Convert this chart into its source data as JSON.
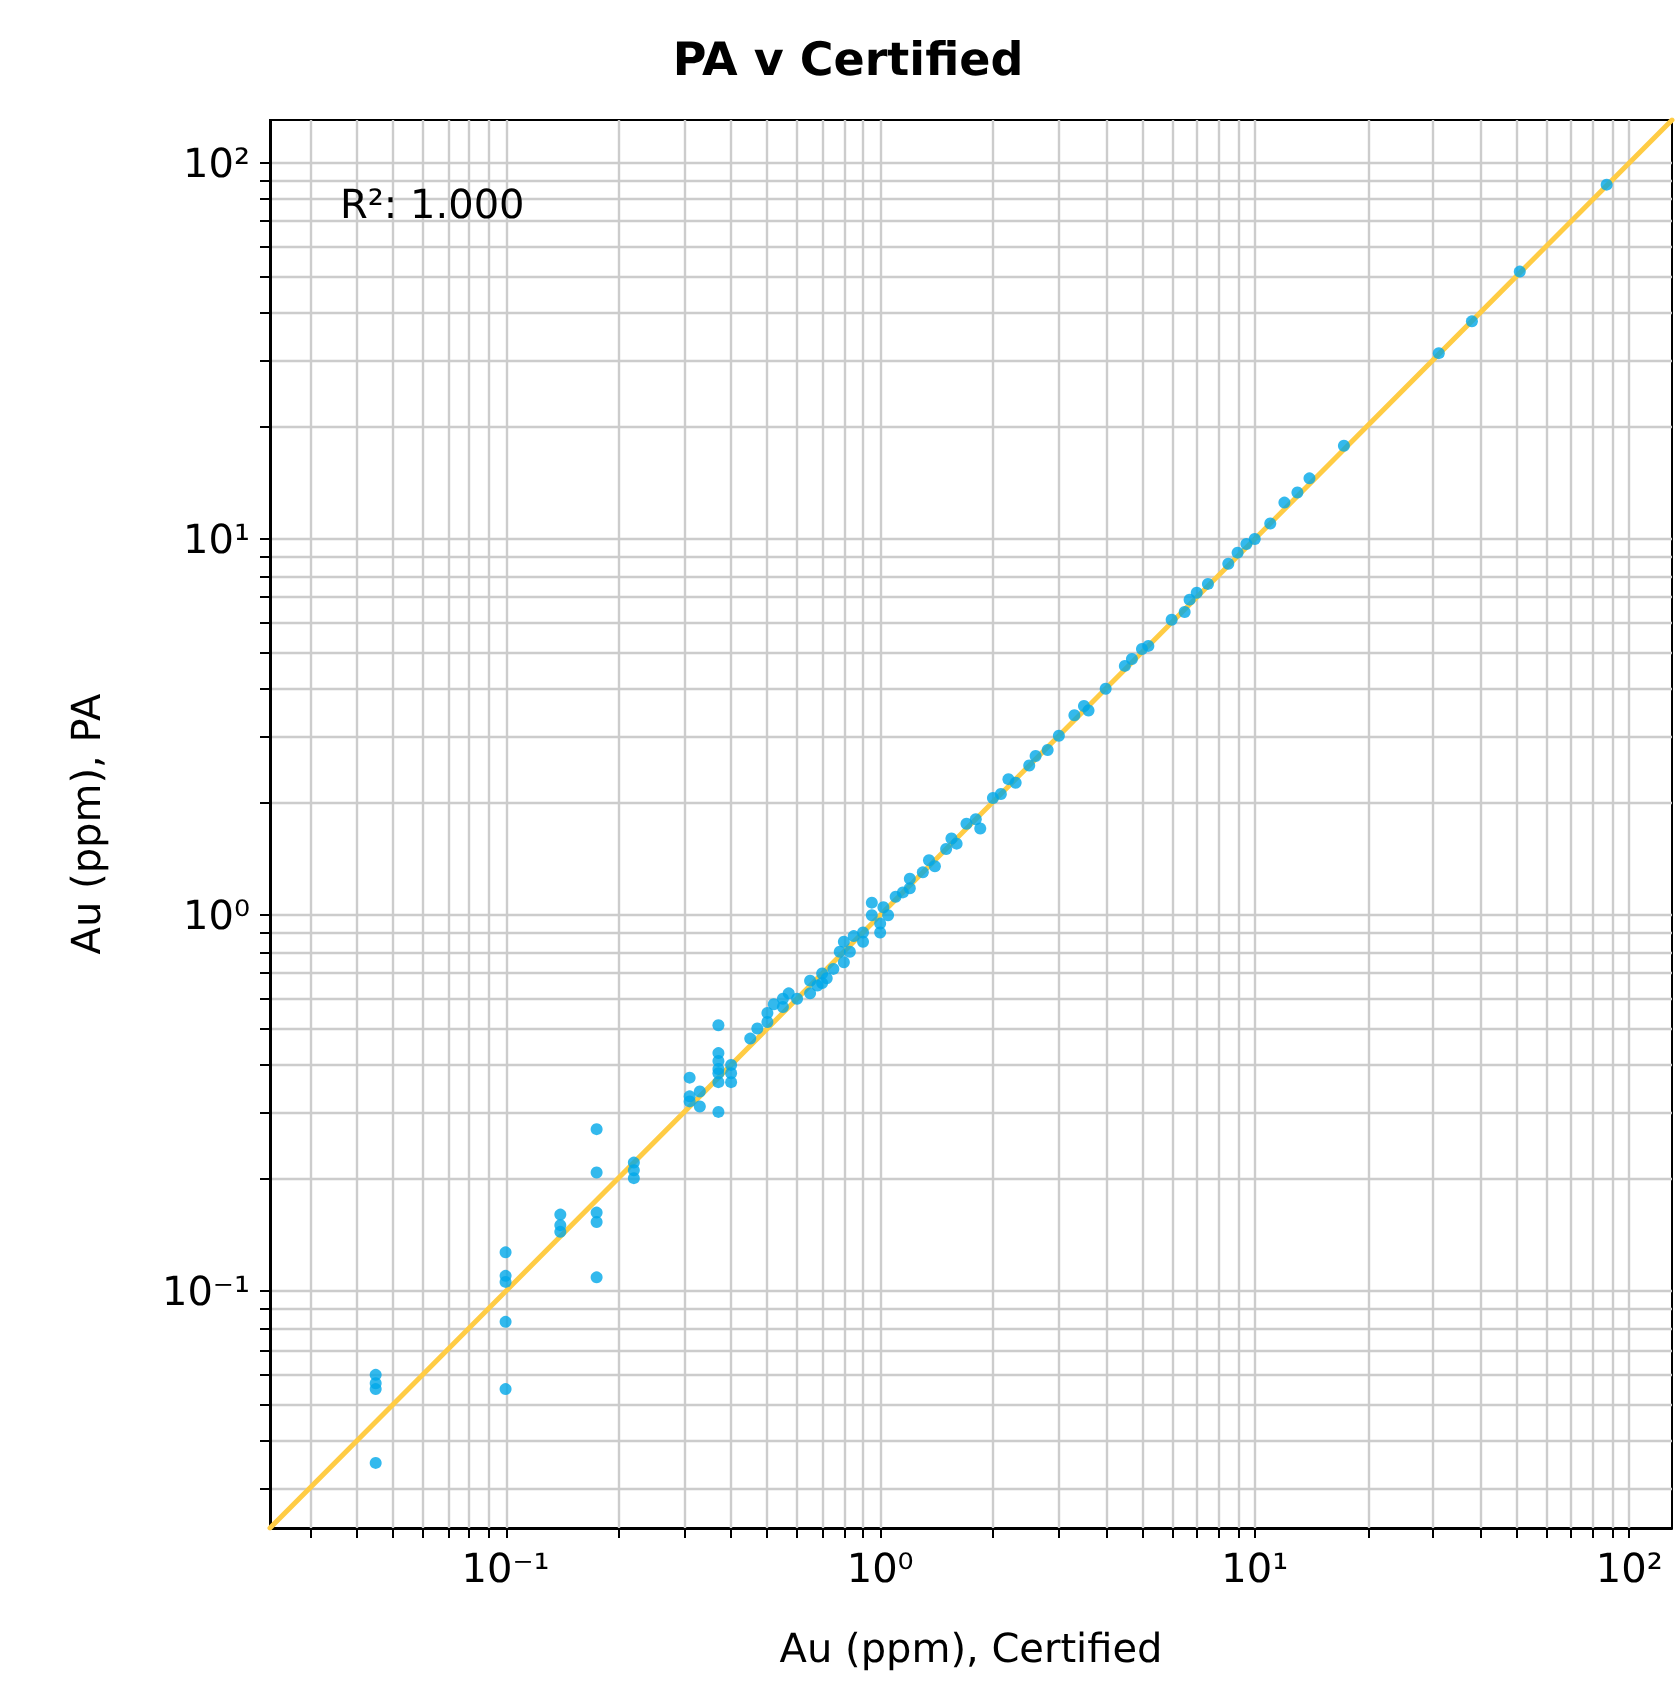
{
  "chart_data": {
    "type": "scatter",
    "title": "PA v Certified",
    "xlabel": "Au (ppm), Certified",
    "ylabel": "Au (ppm), PA",
    "annotations": [
      "R²: 1.000"
    ],
    "log": "xy",
    "grid": true,
    "marker": "circle",
    "xlim": [
      0.0235,
      130
    ],
    "ylim": [
      0.0235,
      130
    ],
    "xticks": [
      {
        "value": 0.03,
        "label": null
      },
      {
        "value": 0.04,
        "label": null
      },
      {
        "value": 0.05,
        "label": null
      },
      {
        "value": 0.06,
        "label": null
      },
      {
        "value": 0.07,
        "label": null
      },
      {
        "value": 0.08,
        "label": null
      },
      {
        "value": 0.09,
        "label": null
      },
      {
        "value": 0.1,
        "label": "10⁻¹"
      },
      {
        "value": 0.2,
        "label": null
      },
      {
        "value": 0.3,
        "label": null
      },
      {
        "value": 0.4,
        "label": null
      },
      {
        "value": 0.5,
        "label": null
      },
      {
        "value": 0.6,
        "label": null
      },
      {
        "value": 0.7,
        "label": null
      },
      {
        "value": 0.8,
        "label": null
      },
      {
        "value": 0.9,
        "label": null
      },
      {
        "value": 1,
        "label": "10⁰"
      },
      {
        "value": 2,
        "label": null
      },
      {
        "value": 3,
        "label": null
      },
      {
        "value": 4,
        "label": null
      },
      {
        "value": 5,
        "label": null
      },
      {
        "value": 6,
        "label": null
      },
      {
        "value": 7,
        "label": null
      },
      {
        "value": 8,
        "label": null
      },
      {
        "value": 9,
        "label": null
      },
      {
        "value": 10,
        "label": "10¹"
      },
      {
        "value": 20,
        "label": null
      },
      {
        "value": 30,
        "label": null
      },
      {
        "value": 40,
        "label": null
      },
      {
        "value": 50,
        "label": null
      },
      {
        "value": 60,
        "label": null
      },
      {
        "value": 70,
        "label": null
      },
      {
        "value": 80,
        "label": null
      },
      {
        "value": 90,
        "label": null
      },
      {
        "value": 100,
        "label": "10²"
      }
    ],
    "yticks": [
      {
        "value": 0.03,
        "label": null
      },
      {
        "value": 0.04,
        "label": null
      },
      {
        "value": 0.05,
        "label": null
      },
      {
        "value": 0.06,
        "label": null
      },
      {
        "value": 0.07,
        "label": null
      },
      {
        "value": 0.08,
        "label": null
      },
      {
        "value": 0.09,
        "label": null
      },
      {
        "value": 0.1,
        "label": "10⁻¹"
      },
      {
        "value": 0.2,
        "label": null
      },
      {
        "value": 0.3,
        "label": null
      },
      {
        "value": 0.4,
        "label": null
      },
      {
        "value": 0.5,
        "label": null
      },
      {
        "value": 0.6,
        "label": null
      },
      {
        "value": 0.7,
        "label": null
      },
      {
        "value": 0.8,
        "label": null
      },
      {
        "value": 0.9,
        "label": null
      },
      {
        "value": 1,
        "label": "10⁰"
      },
      {
        "value": 2,
        "label": null
      },
      {
        "value": 3,
        "label": null
      },
      {
        "value": 4,
        "label": null
      },
      {
        "value": 5,
        "label": null
      },
      {
        "value": 6,
        "label": null
      },
      {
        "value": 7,
        "label": null
      },
      {
        "value": 8,
        "label": null
      },
      {
        "value": 9,
        "label": null
      },
      {
        "value": 10,
        "label": "10¹"
      },
      {
        "value": 20,
        "label": null
      },
      {
        "value": 30,
        "label": null
      },
      {
        "value": 40,
        "label": null
      },
      {
        "value": 50,
        "label": null
      },
      {
        "value": 60,
        "label": null
      },
      {
        "value": 70,
        "label": null
      },
      {
        "value": 80,
        "label": null
      },
      {
        "value": 90,
        "label": null
      },
      {
        "value": 100,
        "label": "10²"
      }
    ],
    "series": [
      {
        "type": "line",
        "color": "#ffcc44",
        "marker": "none",
        "line_style": "solid",
        "x": [
          0.0235,
          130
        ],
        "values": [
          0.0235,
          130
        ]
      },
      {
        "color": "#00a8e8",
        "x": [
          0.045,
          0.045,
          0.045,
          0.045,
          0.1,
          0.1,
          0.1,
          0.1,
          0.1,
          0.14,
          0.14,
          0.14,
          0.175,
          0.175,
          0.175,
          0.175,
          0.175,
          0.22,
          0.22,
          0.22,
          0.31,
          0.31,
          0.31,
          0.33,
          0.33,
          0.37,
          0.37,
          0.37,
          0.37,
          0.37,
          0.37,
          0.37,
          0.4,
          0.4,
          0.4,
          0.45,
          0.47,
          0.5,
          0.5,
          0.52,
          0.55,
          0.55,
          0.57,
          0.6,
          0.65,
          0.65,
          0.68,
          0.7,
          0.7,
          0.72,
          0.75,
          0.78,
          0.8,
          0.8,
          0.83,
          0.85,
          0.9,
          0.9,
          0.95,
          0.95,
          1,
          1,
          1.02,
          1.05,
          1.1,
          1.15,
          1.2,
          1.2,
          1.3,
          1.35,
          1.4,
          1.5,
          1.55,
          1.6,
          1.7,
          1.8,
          1.85,
          2,
          2.1,
          2.2,
          2.3,
          2.5,
          2.6,
          2.8,
          3,
          3.3,
          3.5,
          3.6,
          4,
          4.5,
          4.7,
          5,
          5.2,
          6,
          6.5,
          6.7,
          7,
          7.5,
          8.5,
          9,
          9.5,
          10,
          11,
          12,
          13,
          14,
          17.3,
          31,
          38,
          51,
          87
        ],
        "values": [
          0.06,
          0.057,
          0.055,
          0.035,
          0.127,
          0.11,
          0.106,
          0.083,
          0.055,
          0.16,
          0.15,
          0.144,
          0.27,
          0.207,
          0.162,
          0.153,
          0.109,
          0.22,
          0.21,
          0.2,
          0.37,
          0.33,
          0.32,
          0.34,
          0.31,
          0.51,
          0.43,
          0.41,
          0.39,
          0.38,
          0.36,
          0.3,
          0.4,
          0.38,
          0.36,
          0.47,
          0.5,
          0.52,
          0.55,
          0.58,
          0.57,
          0.6,
          0.62,
          0.6,
          0.62,
          0.67,
          0.65,
          0.7,
          0.66,
          0.68,
          0.72,
          0.8,
          0.75,
          0.85,
          0.8,
          0.88,
          0.9,
          0.85,
          1,
          1.08,
          0.95,
          0.9,
          1.05,
          1,
          1.12,
          1.15,
          1.25,
          1.18,
          1.3,
          1.4,
          1.35,
          1.5,
          1.6,
          1.55,
          1.75,
          1.8,
          1.7,
          2.05,
          2.1,
          2.3,
          2.25,
          2.5,
          2.65,
          2.75,
          3,
          3.4,
          3.6,
          3.5,
          4,
          4.6,
          4.8,
          5.1,
          5.2,
          6.1,
          6.4,
          6.9,
          7.2,
          7.6,
          8.6,
          9.2,
          9.7,
          10,
          11,
          12.5,
          13.3,
          14.5,
          17.7,
          31.2,
          37.9,
          51.4,
          87.5
        ]
      }
    ]
  }
}
